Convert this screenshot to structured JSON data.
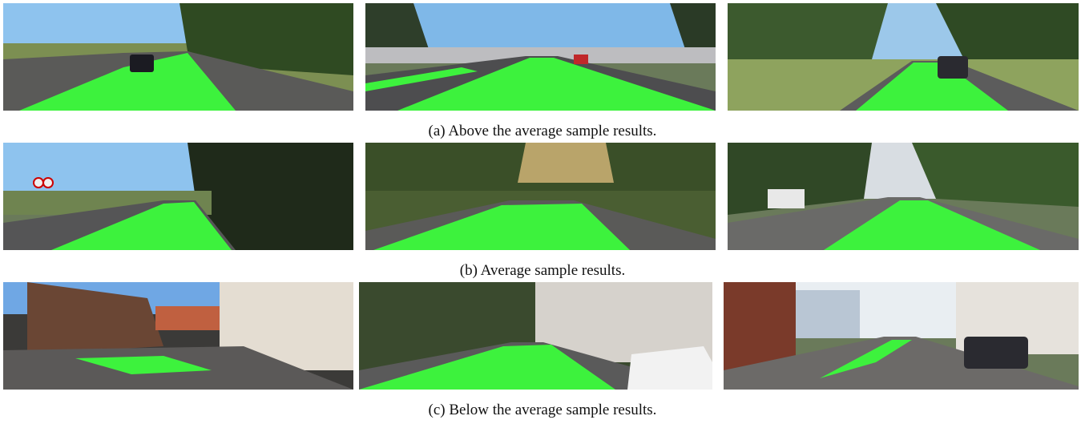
{
  "figure": {
    "rows": [
      {
        "caption": "(a) Above the average sample results.",
        "images": [
          {
            "scene": "rural-road-dark-car",
            "overlay": "road-segmentation"
          },
          {
            "scene": "urban-avenue-traffic",
            "overlay": "road-segmentation"
          },
          {
            "scene": "tree-lined-road-parked-car",
            "overlay": "road-segmentation"
          }
        ]
      },
      {
        "caption": "(b) Average sample results.",
        "images": [
          {
            "scene": "rural-road-speed-signs",
            "overlay": "road-segmentation"
          },
          {
            "scene": "forest-road-shadows",
            "overlay": "road-segmentation"
          },
          {
            "scene": "road-with-tram-tracks-van",
            "overlay": "road-segmentation"
          }
        ]
      },
      {
        "caption": "(c) Below the average sample results.",
        "images": [
          {
            "scene": "village-buildings-courtyard",
            "overlay": "road-segmentation"
          },
          {
            "scene": "city-street-white-car",
            "overlay": "road-segmentation"
          },
          {
            "scene": "cobblestone-residential-street",
            "overlay": "road-segmentation"
          }
        ]
      }
    ],
    "colors": {
      "segmentation": "#3df23d",
      "sky": "#7fb8e8",
      "foliage": "#3b5a2a",
      "asphalt": "#4d4d4f",
      "building": "#d9d2c8"
    }
  }
}
